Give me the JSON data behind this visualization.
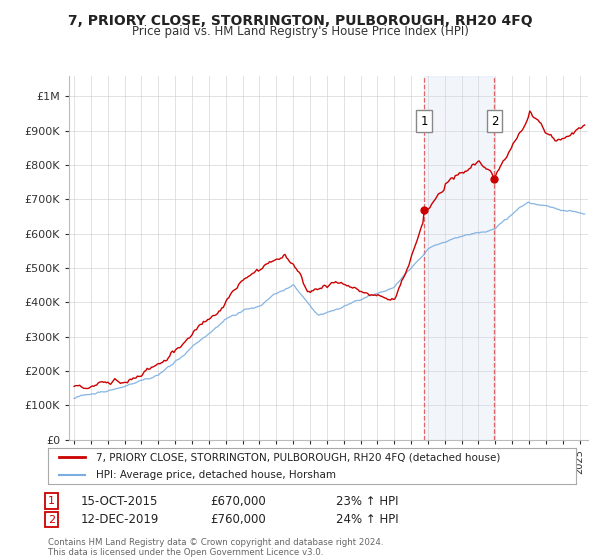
{
  "title": "7, PRIORY CLOSE, STORRINGTON, PULBOROUGH, RH20 4FQ",
  "subtitle": "Price paid vs. HM Land Registry's House Price Index (HPI)",
  "ylabel_ticks": [
    "£0",
    "£100K",
    "£200K",
    "£300K",
    "£400K",
    "£500K",
    "£600K",
    "£700K",
    "£800K",
    "£900K",
    "£1M"
  ],
  "ytick_vals": [
    0,
    100000,
    200000,
    300000,
    400000,
    500000,
    600000,
    700000,
    800000,
    900000,
    1000000
  ],
  "ylim": [
    0,
    1060000
  ],
  "xlim_start": 1994.7,
  "xlim_end": 2025.5,
  "sale1_x": 2015.79,
  "sale1_y": 670000,
  "sale2_x": 2019.95,
  "sale2_y": 760000,
  "sale1_date": "15-OCT-2015",
  "sale1_price": "£670,000",
  "sale1_hpi": "23% ↑ HPI",
  "sale2_date": "12-DEC-2019",
  "sale2_price": "£760,000",
  "sale2_hpi": "24% ↑ HPI",
  "line1_color": "#cc0000",
  "line2_color": "#7aade0",
  "highlight_fill": "#ddeeff",
  "legend_label1": "7, PRIORY CLOSE, STORRINGTON, PULBOROUGH, RH20 4FQ (detached house)",
  "legend_label2": "HPI: Average price, detached house, Horsham",
  "footer": "Contains HM Land Registry data © Crown copyright and database right 2024.\nThis data is licensed under the Open Government Licence v3.0.",
  "grid_color": "#cccccc",
  "background_color": "#ffffff"
}
